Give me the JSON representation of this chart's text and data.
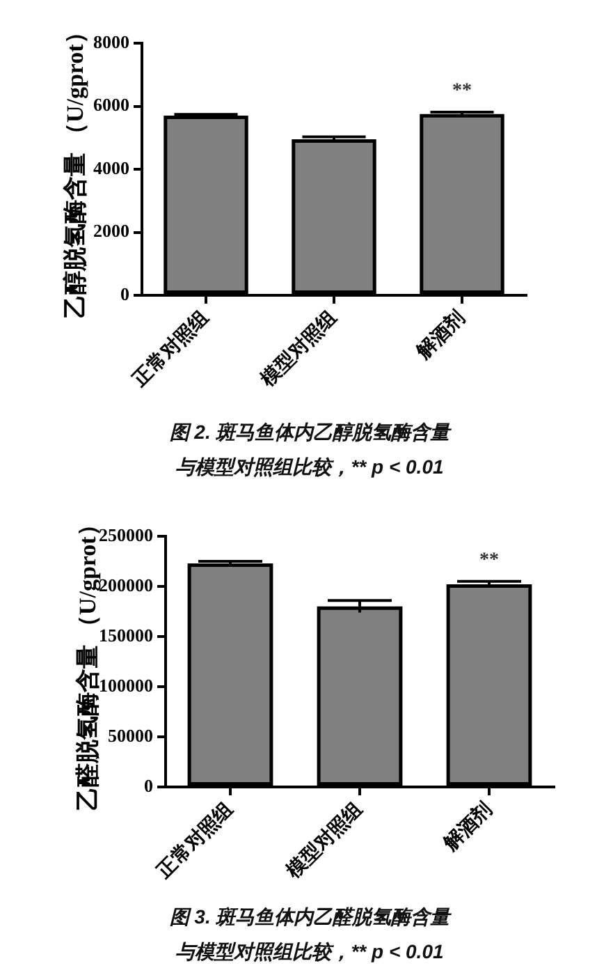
{
  "chart_data": [
    {
      "type": "bar",
      "title": "图 2. 斑马鱼体内乙醇脱氢酶含量",
      "ylabel": "乙醇脱氢酶含量 （U/gprot）",
      "categories": [
        "正常对照组",
        "模型对照组",
        "解酒剂"
      ],
      "values": [
        5700,
        4950,
        5750
      ],
      "errors": [
        40,
        80,
        60
      ],
      "value_labels": [
        null,
        null,
        "**"
      ],
      "color": "#808080",
      "ylim": [
        0,
        8000
      ],
      "yticks": [
        0,
        2000,
        4000,
        6000,
        8000
      ],
      "legend": false,
      "annotations": [
        "与模型对照组比较，** p < 0.01"
      ]
    },
    {
      "type": "bar",
      "title": "图 3. 斑马鱼体内乙醛脱氢酶含量",
      "ylabel": "乙醛脱氢酶含量 （U/gprot）",
      "categories": [
        "正常对照组",
        "模型对照组",
        "解酒剂"
      ],
      "values": [
        223000,
        180000,
        202000
      ],
      "errors": [
        2000,
        6000,
        3000
      ],
      "value_labels": [
        null,
        null,
        "**"
      ],
      "color": "#808080",
      "ylim": [
        0,
        250000
      ],
      "yticks": [
        0,
        50000,
        100000,
        150000,
        200000,
        250000
      ],
      "legend": false,
      "annotations": [
        "与模型对照组比较，** p < 0.01"
      ]
    }
  ]
}
